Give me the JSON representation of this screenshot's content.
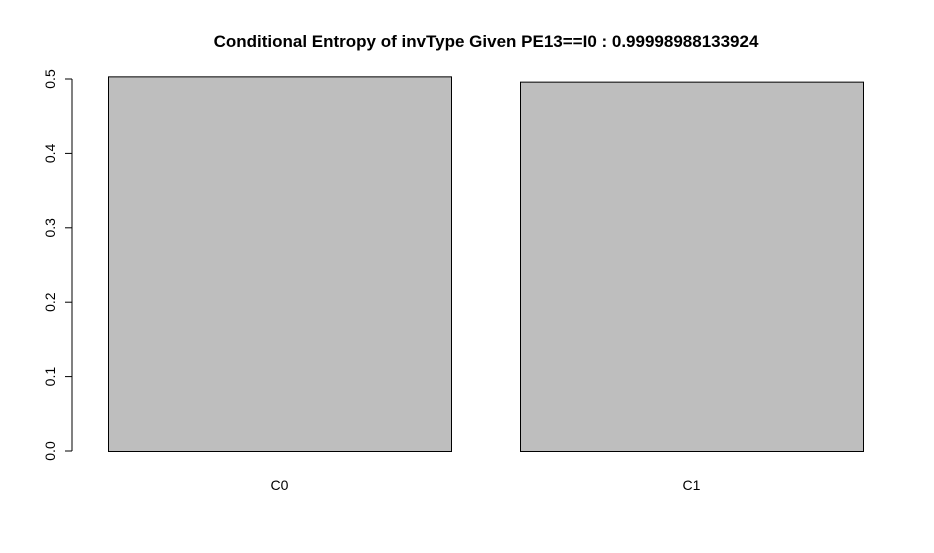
{
  "chart_data": {
    "type": "bar",
    "title": "Conditional Entropy of invType Given PE13==I0 :  0.99998988133924",
    "xlabel": "",
    "ylabel": "",
    "categories": [
      "C0",
      "C1"
    ],
    "values": [
      0.50355,
      0.49645
    ],
    "ylim": [
      0,
      0.5
    ],
    "yticks": [
      "0.0",
      "0.1",
      "0.2",
      "0.3",
      "0.4",
      "0.5"
    ],
    "grid": false,
    "legend": "none",
    "colors": {
      "bar_fill": "#bebebe",
      "bar_stroke": "#000000",
      "axis": "#000000",
      "background": "#ffffff"
    }
  }
}
